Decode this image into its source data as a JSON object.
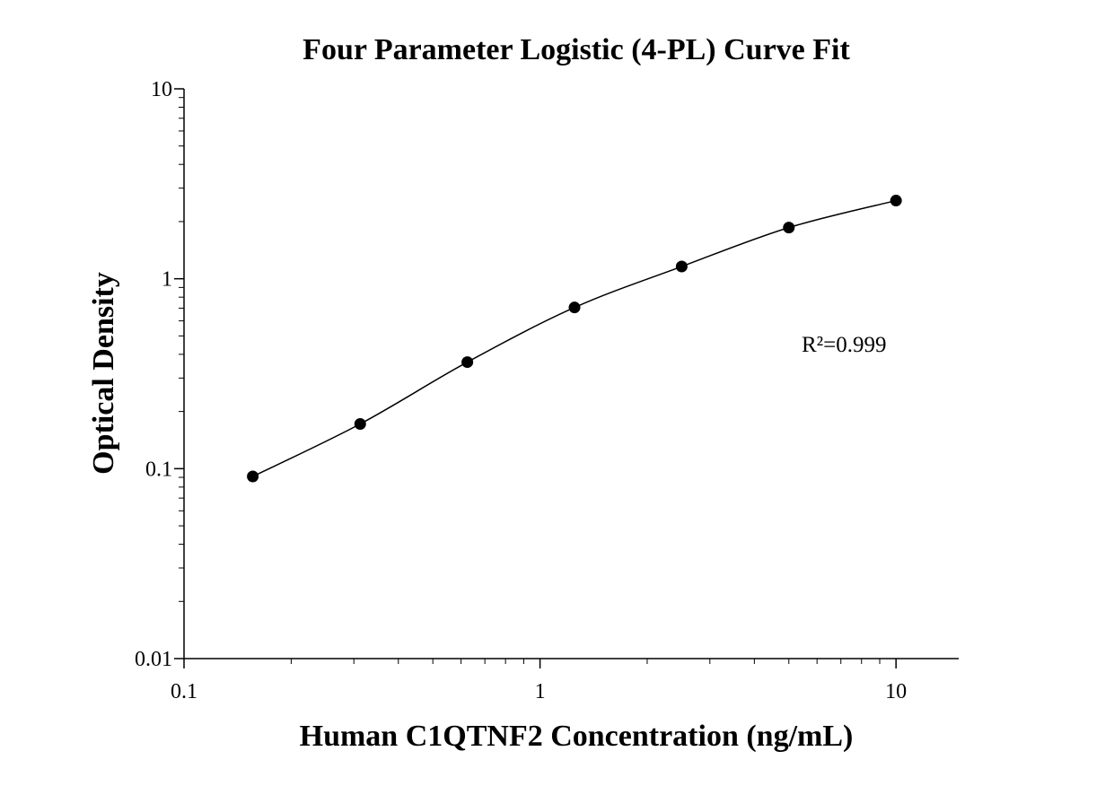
{
  "chart_data": {
    "type": "scatter",
    "title": "Four Parameter Logistic (4-PL) Curve Fit",
    "x_label": "Human C1QTNF2 Concentration (ng/mL)",
    "y_label": "Optical Density",
    "annotation": "R²=0.999",
    "x_log": true,
    "y_log": true,
    "xlim": [
      0.1,
      15
    ],
    "ylim": [
      0.01,
      10
    ],
    "xticks": [
      0.1,
      1,
      10
    ],
    "yticks": [
      0.01,
      0.1,
      1,
      10
    ],
    "series": [
      {
        "color": "#000000",
        "fit_curve": true,
        "x": [
          0.156,
          0.3125,
          0.625,
          1.25,
          2.5,
          5,
          10
        ],
        "values": [
          0.091,
          0.172,
          0.364,
          0.706,
          1.16,
          1.86,
          2.58
        ]
      }
    ]
  }
}
